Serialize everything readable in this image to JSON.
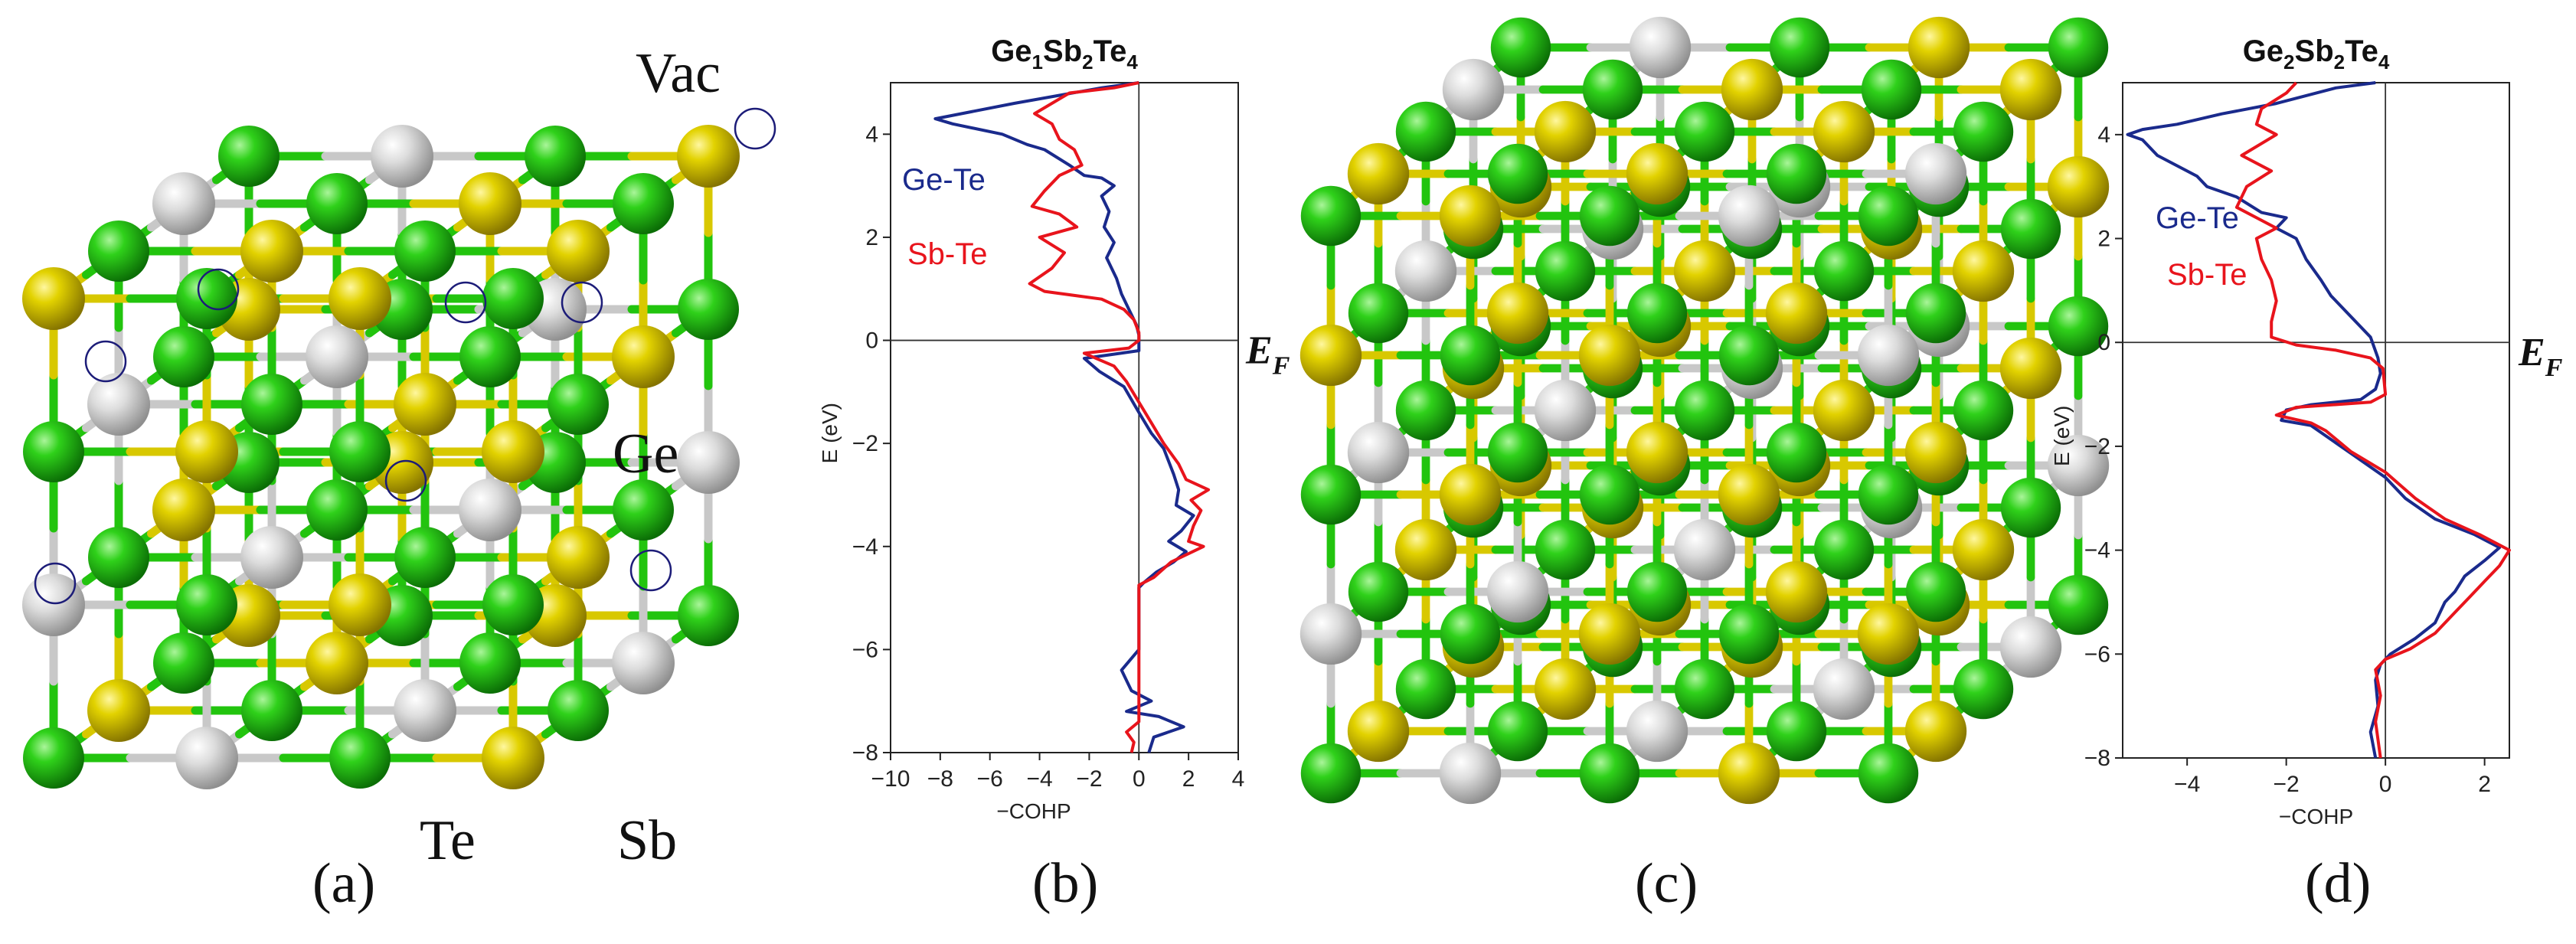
{
  "figure": {
    "panel_labels": [
      "(a)",
      "(b)",
      "(c)",
      "(d)"
    ],
    "crystal_a_labels": {
      "vac": "Vac",
      "ge": "Ge",
      "te": "Te",
      "sb": "Sb"
    },
    "colors": {
      "te_atom": "#22c40e",
      "sb_atom": "#d8c800",
      "ge_atom": "#d7d7d7",
      "vac_ring": "#1c1c78",
      "bond_gray": "#c8c8c8"
    }
  },
  "chart_data": [
    {
      "type": "line",
      "title_parts": [
        {
          "t": "Ge",
          "sub": false
        },
        {
          "t": "1",
          "sub": true
        },
        {
          "t": "Sb",
          "sub": false
        },
        {
          "t": "2",
          "sub": true
        },
        {
          "t": "Te",
          "sub": false
        },
        {
          "t": "4",
          "sub": true
        }
      ],
      "xlabel": "−COHP",
      "ylabel": "E (eV)",
      "xlim": [
        -10,
        4
      ],
      "ylim": [
        -8,
        5
      ],
      "xticks": [
        -10,
        -8,
        -6,
        -4,
        -2,
        0,
        2,
        4
      ],
      "yticks": [
        -8,
        -6,
        -4,
        -2,
        0,
        2,
        4
      ],
      "fermi_label": "E",
      "fermi_sub": "F",
      "series": [
        {
          "name": "Ge-Te",
          "color": "#1a2a8c",
          "points": [
            [
              0,
              5
            ],
            [
              -1.5,
              4.9
            ],
            [
              -5,
              4.6
            ],
            [
              -8.2,
              4.3
            ],
            [
              -7.5,
              4.2
            ],
            [
              -5.5,
              4.0
            ],
            [
              -4.5,
              3.8
            ],
            [
              -3.8,
              3.7
            ],
            [
              -2.8,
              3.4
            ],
            [
              -2.2,
              3.2
            ],
            [
              -1.5,
              3.15
            ],
            [
              -1.0,
              3.0
            ],
            [
              -1.5,
              2.8
            ],
            [
              -1.2,
              2.5
            ],
            [
              -1.4,
              2.2
            ],
            [
              -1.0,
              1.9
            ],
            [
              -1.3,
              1.6
            ],
            [
              -0.9,
              1.2
            ],
            [
              -0.7,
              0.9
            ],
            [
              -0.4,
              0.6
            ],
            [
              -0.1,
              0.3
            ],
            [
              0,
              0.1
            ],
            [
              0,
              0
            ],
            [
              0,
              -0.2
            ],
            [
              -2.2,
              -0.35
            ],
            [
              -1.6,
              -0.6
            ],
            [
              -0.6,
              -0.9
            ],
            [
              0,
              -1.4
            ],
            [
              0.5,
              -1.8
            ],
            [
              1,
              -2.1
            ],
            [
              1.4,
              -2.6
            ],
            [
              1.6,
              -2.9
            ],
            [
              1.5,
              -3.2
            ],
            [
              2.2,
              -3.4
            ],
            [
              1.7,
              -3.7
            ],
            [
              1.2,
              -3.9
            ],
            [
              1.9,
              -4.1
            ],
            [
              1.4,
              -4.3
            ],
            [
              0.7,
              -4.5
            ],
            [
              0.2,
              -4.7
            ],
            [
              0,
              -4.8
            ],
            [
              0,
              -6.0
            ],
            [
              -0.7,
              -6.4
            ],
            [
              -0.3,
              -6.8
            ],
            [
              0.5,
              -7.0
            ],
            [
              -0.5,
              -7.2
            ],
            [
              0.8,
              -7.3
            ],
            [
              1.8,
              -7.5
            ],
            [
              0.6,
              -7.7
            ],
            [
              0.4,
              -8
            ]
          ]
        },
        {
          "name": "Sb-Te",
          "color": "#e8141c",
          "points": [
            [
              0,
              5
            ],
            [
              -1.0,
              4.9
            ],
            [
              -2.8,
              4.8
            ],
            [
              -4.2,
              4.4
            ],
            [
              -3.5,
              4.2
            ],
            [
              -3.2,
              3.9
            ],
            [
              -2.6,
              3.7
            ],
            [
              -2.3,
              3.4
            ],
            [
              -3.2,
              3.2
            ],
            [
              -3.8,
              2.9
            ],
            [
              -4.3,
              2.6
            ],
            [
              -3.2,
              2.45
            ],
            [
              -2.5,
              2.2
            ],
            [
              -4.0,
              2.0
            ],
            [
              -3.0,
              1.7
            ],
            [
              -3.5,
              1.4
            ],
            [
              -4.4,
              1.1
            ],
            [
              -3.8,
              0.95
            ],
            [
              -1.5,
              0.8
            ],
            [
              -0.6,
              0.6
            ],
            [
              -0.2,
              0.4
            ],
            [
              0,
              0.15
            ],
            [
              0,
              0
            ],
            [
              -0.4,
              -0.15
            ],
            [
              -2.2,
              -0.25
            ],
            [
              -1.0,
              -0.5
            ],
            [
              -0.5,
              -0.8
            ],
            [
              0,
              -1.2
            ],
            [
              0.5,
              -1.6
            ],
            [
              1.0,
              -2.0
            ],
            [
              1.6,
              -2.4
            ],
            [
              1.9,
              -2.7
            ],
            [
              2.8,
              -2.9
            ],
            [
              2.1,
              -3.1
            ],
            [
              2.5,
              -3.3
            ],
            [
              2.2,
              -3.6
            ],
            [
              2.0,
              -3.9
            ],
            [
              2.6,
              -4.0
            ],
            [
              1.3,
              -4.3
            ],
            [
              0.6,
              -4.6
            ],
            [
              0,
              -4.75
            ],
            [
              0,
              -7.4
            ],
            [
              -0.5,
              -7.6
            ],
            [
              -0.2,
              -7.8
            ],
            [
              -0.3,
              -8
            ]
          ]
        }
      ]
    },
    {
      "type": "line",
      "title_parts": [
        {
          "t": "Ge",
          "sub": false
        },
        {
          "t": "2",
          "sub": true
        },
        {
          "t": "Sb",
          "sub": false
        },
        {
          "t": "2",
          "sub": true
        },
        {
          "t": "Te",
          "sub": false
        },
        {
          "t": "4",
          "sub": true
        }
      ],
      "xlabel": "−COHP",
      "ylabel": "E (eV)",
      "xlim": [
        -5.3,
        2.5
      ],
      "ylim": [
        -8,
        5
      ],
      "xticks": [
        -4,
        -2,
        0,
        2
      ],
      "yticks": [
        -8,
        -6,
        -4,
        -2,
        0,
        2,
        4
      ],
      "fermi_label": "E",
      "fermi_sub": "F",
      "series": [
        {
          "name": "Ge-Te",
          "color": "#1a2a8c",
          "points": [
            [
              -0.2,
              5
            ],
            [
              -1.0,
              4.9
            ],
            [
              -2.2,
              4.6
            ],
            [
              -3.3,
              4.4
            ],
            [
              -4.2,
              4.2
            ],
            [
              -4.9,
              4.1
            ],
            [
              -5.2,
              4.0
            ],
            [
              -4.9,
              3.9
            ],
            [
              -4.6,
              3.6
            ],
            [
              -3.8,
              3.2
            ],
            [
              -3.6,
              3.0
            ],
            [
              -3.0,
              2.8
            ],
            [
              -2.5,
              2.5
            ],
            [
              -2.0,
              2.4
            ],
            [
              -2.2,
              2.2
            ],
            [
              -1.8,
              2.0
            ],
            [
              -1.6,
              1.6
            ],
            [
              -1.3,
              1.2
            ],
            [
              -1.1,
              0.9
            ],
            [
              -0.8,
              0.6
            ],
            [
              -0.5,
              0.3
            ],
            [
              -0.3,
              0.1
            ],
            [
              -0.15,
              -0.3
            ],
            [
              -0.1,
              -0.6
            ],
            [
              -0.2,
              -0.9
            ],
            [
              -0.5,
              -1.1
            ],
            [
              -1.5,
              -1.2
            ],
            [
              -2.0,
              -1.3
            ],
            [
              -2.1,
              -1.5
            ],
            [
              -1.5,
              -1.6
            ],
            [
              -1.2,
              -1.8
            ],
            [
              -0.6,
              -2.2
            ],
            [
              0,
              -2.6
            ],
            [
              0.4,
              -3.0
            ],
            [
              1.0,
              -3.4
            ],
            [
              1.8,
              -3.7
            ],
            [
              2.3,
              -3.95
            ],
            [
              2.0,
              -4.2
            ],
            [
              1.6,
              -4.5
            ],
            [
              1.4,
              -4.8
            ],
            [
              1.2,
              -5.0
            ],
            [
              1.0,
              -5.4
            ],
            [
              0.6,
              -5.7
            ],
            [
              0.1,
              -6.0
            ],
            [
              -0.1,
              -6.2
            ],
            [
              -0.2,
              -6.5
            ],
            [
              -0.15,
              -7.0
            ],
            [
              -0.3,
              -7.5
            ],
            [
              -0.2,
              -8
            ]
          ]
        },
        {
          "name": "Sb-Te",
          "color": "#e8141c",
          "points": [
            [
              -1.8,
              5
            ],
            [
              -2.0,
              4.8
            ],
            [
              -2.5,
              4.5
            ],
            [
              -2.6,
              4.2
            ],
            [
              -2.2,
              4.0
            ],
            [
              -2.9,
              3.6
            ],
            [
              -2.3,
              3.3
            ],
            [
              -2.8,
              3.0
            ],
            [
              -3.0,
              2.6
            ],
            [
              -2.6,
              2.4
            ],
            [
              -2.2,
              2.2
            ],
            [
              -2.6,
              2.0
            ],
            [
              -2.5,
              1.6
            ],
            [
              -2.3,
              1.2
            ],
            [
              -2.2,
              0.8
            ],
            [
              -2.3,
              0.4
            ],
            [
              -2.3,
              0.1
            ],
            [
              -1.8,
              -0.05
            ],
            [
              -1.0,
              -0.15
            ],
            [
              -0.3,
              -0.3
            ],
            [
              -0.05,
              -0.5
            ],
            [
              0,
              -1.0
            ],
            [
              -0.3,
              -1.15
            ],
            [
              -1.8,
              -1.25
            ],
            [
              -2.2,
              -1.4
            ],
            [
              -1.5,
              -1.55
            ],
            [
              -1.2,
              -1.7
            ],
            [
              -0.7,
              -2.1
            ],
            [
              0,
              -2.5
            ],
            [
              0.6,
              -3.0
            ],
            [
              1.2,
              -3.4
            ],
            [
              1.9,
              -3.7
            ],
            [
              2.5,
              -4.0
            ],
            [
              2.3,
              -4.3
            ],
            [
              2.0,
              -4.6
            ],
            [
              1.7,
              -4.9
            ],
            [
              1.4,
              -5.2
            ],
            [
              1.0,
              -5.6
            ],
            [
              0.5,
              -5.9
            ],
            [
              0,
              -6.1
            ],
            [
              -0.2,
              -6.3
            ],
            [
              -0.1,
              -6.8
            ],
            [
              -0.2,
              -7.3
            ],
            [
              -0.1,
              -8
            ]
          ]
        }
      ]
    }
  ]
}
